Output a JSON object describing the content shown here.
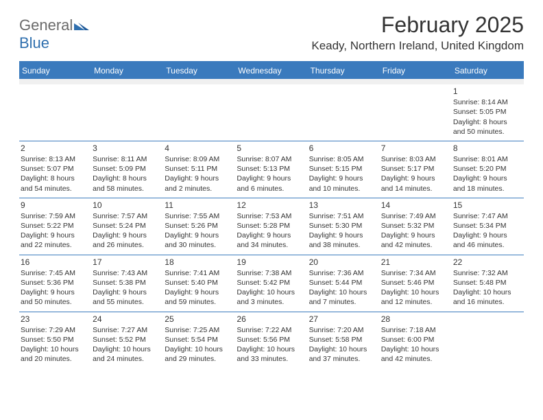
{
  "logo": {
    "general": "General",
    "blue": "Blue"
  },
  "title": "February 2025",
  "location": "Keady, Northern Ireland, United Kingdom",
  "colors": {
    "header_blue": "#3a7abd",
    "logo_blue": "#2f6fae",
    "logo_gray": "#6a6a6a",
    "text": "#333333",
    "background": "#ffffff",
    "spacer": "#f0f0f0"
  },
  "dow": [
    "Sunday",
    "Monday",
    "Tuesday",
    "Wednesday",
    "Thursday",
    "Friday",
    "Saturday"
  ],
  "weeks": [
    [
      {
        "n": "",
        "sr": "",
        "ss": "",
        "dl": ""
      },
      {
        "n": "",
        "sr": "",
        "ss": "",
        "dl": ""
      },
      {
        "n": "",
        "sr": "",
        "ss": "",
        "dl": ""
      },
      {
        "n": "",
        "sr": "",
        "ss": "",
        "dl": ""
      },
      {
        "n": "",
        "sr": "",
        "ss": "",
        "dl": ""
      },
      {
        "n": "",
        "sr": "",
        "ss": "",
        "dl": ""
      },
      {
        "n": "1",
        "sr": "Sunrise: 8:14 AM",
        "ss": "Sunset: 5:05 PM",
        "dl": "Daylight: 8 hours and 50 minutes."
      }
    ],
    [
      {
        "n": "2",
        "sr": "Sunrise: 8:13 AM",
        "ss": "Sunset: 5:07 PM",
        "dl": "Daylight: 8 hours and 54 minutes."
      },
      {
        "n": "3",
        "sr": "Sunrise: 8:11 AM",
        "ss": "Sunset: 5:09 PM",
        "dl": "Daylight: 8 hours and 58 minutes."
      },
      {
        "n": "4",
        "sr": "Sunrise: 8:09 AM",
        "ss": "Sunset: 5:11 PM",
        "dl": "Daylight: 9 hours and 2 minutes."
      },
      {
        "n": "5",
        "sr": "Sunrise: 8:07 AM",
        "ss": "Sunset: 5:13 PM",
        "dl": "Daylight: 9 hours and 6 minutes."
      },
      {
        "n": "6",
        "sr": "Sunrise: 8:05 AM",
        "ss": "Sunset: 5:15 PM",
        "dl": "Daylight: 9 hours and 10 minutes."
      },
      {
        "n": "7",
        "sr": "Sunrise: 8:03 AM",
        "ss": "Sunset: 5:17 PM",
        "dl": "Daylight: 9 hours and 14 minutes."
      },
      {
        "n": "8",
        "sr": "Sunrise: 8:01 AM",
        "ss": "Sunset: 5:20 PM",
        "dl": "Daylight: 9 hours and 18 minutes."
      }
    ],
    [
      {
        "n": "9",
        "sr": "Sunrise: 7:59 AM",
        "ss": "Sunset: 5:22 PM",
        "dl": "Daylight: 9 hours and 22 minutes."
      },
      {
        "n": "10",
        "sr": "Sunrise: 7:57 AM",
        "ss": "Sunset: 5:24 PM",
        "dl": "Daylight: 9 hours and 26 minutes."
      },
      {
        "n": "11",
        "sr": "Sunrise: 7:55 AM",
        "ss": "Sunset: 5:26 PM",
        "dl": "Daylight: 9 hours and 30 minutes."
      },
      {
        "n": "12",
        "sr": "Sunrise: 7:53 AM",
        "ss": "Sunset: 5:28 PM",
        "dl": "Daylight: 9 hours and 34 minutes."
      },
      {
        "n": "13",
        "sr": "Sunrise: 7:51 AM",
        "ss": "Sunset: 5:30 PM",
        "dl": "Daylight: 9 hours and 38 minutes."
      },
      {
        "n": "14",
        "sr": "Sunrise: 7:49 AM",
        "ss": "Sunset: 5:32 PM",
        "dl": "Daylight: 9 hours and 42 minutes."
      },
      {
        "n": "15",
        "sr": "Sunrise: 7:47 AM",
        "ss": "Sunset: 5:34 PM",
        "dl": "Daylight: 9 hours and 46 minutes."
      }
    ],
    [
      {
        "n": "16",
        "sr": "Sunrise: 7:45 AM",
        "ss": "Sunset: 5:36 PM",
        "dl": "Daylight: 9 hours and 50 minutes."
      },
      {
        "n": "17",
        "sr": "Sunrise: 7:43 AM",
        "ss": "Sunset: 5:38 PM",
        "dl": "Daylight: 9 hours and 55 minutes."
      },
      {
        "n": "18",
        "sr": "Sunrise: 7:41 AM",
        "ss": "Sunset: 5:40 PM",
        "dl": "Daylight: 9 hours and 59 minutes."
      },
      {
        "n": "19",
        "sr": "Sunrise: 7:38 AM",
        "ss": "Sunset: 5:42 PM",
        "dl": "Daylight: 10 hours and 3 minutes."
      },
      {
        "n": "20",
        "sr": "Sunrise: 7:36 AM",
        "ss": "Sunset: 5:44 PM",
        "dl": "Daylight: 10 hours and 7 minutes."
      },
      {
        "n": "21",
        "sr": "Sunrise: 7:34 AM",
        "ss": "Sunset: 5:46 PM",
        "dl": "Daylight: 10 hours and 12 minutes."
      },
      {
        "n": "22",
        "sr": "Sunrise: 7:32 AM",
        "ss": "Sunset: 5:48 PM",
        "dl": "Daylight: 10 hours and 16 minutes."
      }
    ],
    [
      {
        "n": "23",
        "sr": "Sunrise: 7:29 AM",
        "ss": "Sunset: 5:50 PM",
        "dl": "Daylight: 10 hours and 20 minutes."
      },
      {
        "n": "24",
        "sr": "Sunrise: 7:27 AM",
        "ss": "Sunset: 5:52 PM",
        "dl": "Daylight: 10 hours and 24 minutes."
      },
      {
        "n": "25",
        "sr": "Sunrise: 7:25 AM",
        "ss": "Sunset: 5:54 PM",
        "dl": "Daylight: 10 hours and 29 minutes."
      },
      {
        "n": "26",
        "sr": "Sunrise: 7:22 AM",
        "ss": "Sunset: 5:56 PM",
        "dl": "Daylight: 10 hours and 33 minutes."
      },
      {
        "n": "27",
        "sr": "Sunrise: 7:20 AM",
        "ss": "Sunset: 5:58 PM",
        "dl": "Daylight: 10 hours and 37 minutes."
      },
      {
        "n": "28",
        "sr": "Sunrise: 7:18 AM",
        "ss": "Sunset: 6:00 PM",
        "dl": "Daylight: 10 hours and 42 minutes."
      },
      {
        "n": "",
        "sr": "",
        "ss": "",
        "dl": ""
      }
    ]
  ]
}
